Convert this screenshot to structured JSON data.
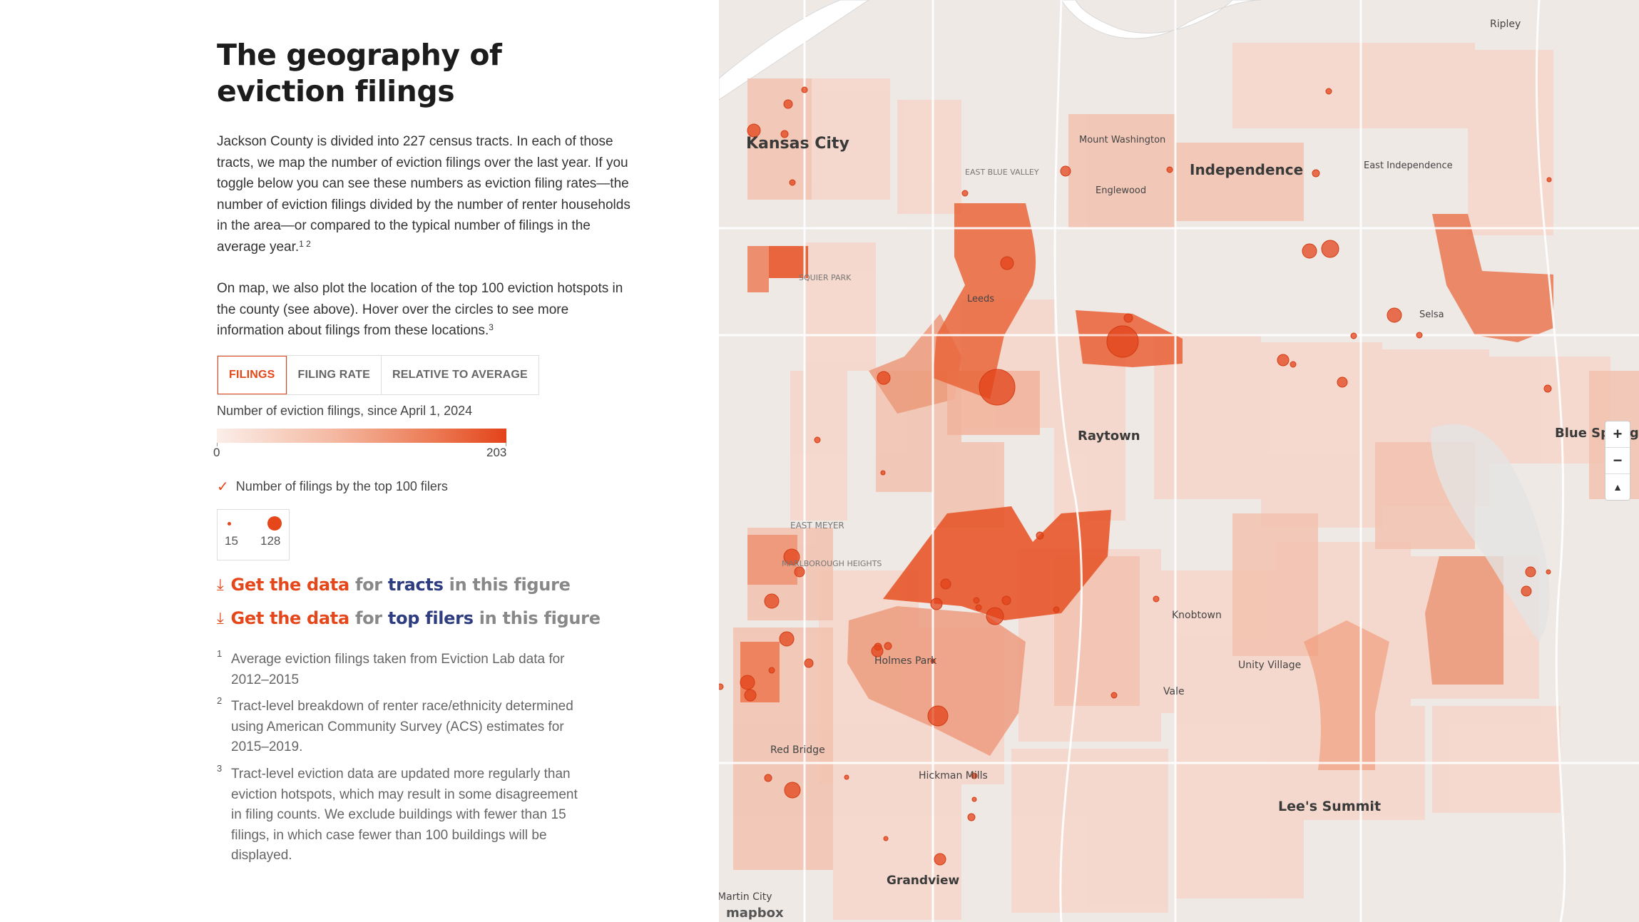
{
  "title": "The geography of eviction filings",
  "intro": {
    "paragraph1": "Jackson County is divided into 227 census tracts. In each of those tracts, we map the number of eviction filings over the last year. If you toggle below you can see these numbers as eviction filing rates—the number of eviction filings divided by the number of renter households in the area—or compared to the typical number of filings in the average year.",
    "paragraph1_sup": "1 2",
    "paragraph2": "On map, we also plot the location of the top 100 eviction hotspots in the county (see above). Hover over the circles to see more information about filings from these locations.",
    "paragraph2_sup": "3"
  },
  "toggle": {
    "options": [
      "FILINGS",
      "FILING RATE",
      "RELATIVE TO AVERAGE"
    ],
    "selected": "FILINGS"
  },
  "legend": {
    "label": "Number of eviction filings, since April 1, 2024",
    "min": "0",
    "max": "203",
    "colors": {
      "low": "#fbeee9",
      "high": "#e3431a"
    },
    "top_filers_label": "Number of filings by the top 100 filers",
    "circle_min": "15",
    "circle_max": "128"
  },
  "downloads": [
    {
      "link": "Get the data",
      "for": "for",
      "target": "tracts",
      "suffix": "in this figure"
    },
    {
      "link": "Get the data",
      "for": "for",
      "target": "top filers",
      "suffix": "in this figure"
    }
  ],
  "footnotes": [
    {
      "num": "1",
      "text": "Average eviction filings taken from Eviction Lab data for 2012–2015"
    },
    {
      "num": "2",
      "text": "Tract-level breakdown of renter race/ethnicity determined using American Community Survey (ACS) estimates for 2015–2019."
    },
    {
      "num": "3",
      "text": "Tract-level eviction data are updated more regularly than eviction hotspots, which may result in some disagreement in filing counts. We exclude buildings with fewer than 15 filings, in which case fewer than 100 buildings will be displayed."
    }
  ],
  "map": {
    "labels": [
      "Kansas City",
      "Independence",
      "Raytown",
      "Knobtown",
      "Unity Village",
      "Vale",
      "Lee's Summit",
      "Holmes Park",
      "Hickman Mills",
      "Grandview",
      "Red Bridge",
      "Martin City",
      "Mount Washington",
      "Englewood",
      "East Independence",
      "EAST BLUE VALLEY",
      "SQUIER PARK",
      "Leeds",
      "Selsa",
      "EAST MEYER",
      "MARLBOROUGH HEIGHTS",
      "Ripley",
      "Blue Springs"
    ],
    "attribution": "mapbox",
    "zoom_in": "+",
    "zoom_out": "−",
    "compass": "▲"
  }
}
